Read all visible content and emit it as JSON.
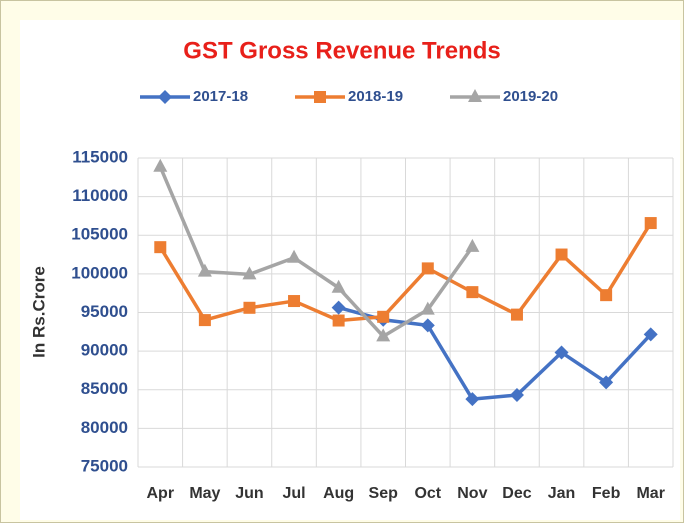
{
  "chart_data": {
    "type": "line",
    "title": "GST Gross Revenue Trends",
    "y_label": "In Rs.Crore",
    "categories": [
      "Apr",
      "May",
      "Jun",
      "Jul",
      "Aug",
      "Sep",
      "Oct",
      "Nov",
      "Dec",
      "Jan",
      "Feb",
      "Mar"
    ],
    "series": [
      {
        "name": "2017-18",
        "color": "#4472c4",
        "marker": "diamond",
        "values": [
          null,
          null,
          null,
          null,
          95633,
          94064,
          93333,
          83780,
          84314,
          89825,
          85962,
          92167
        ]
      },
      {
        "name": "2018-19",
        "color": "#ed7d31",
        "marker": "square",
        "values": [
          103458,
          94016,
          95610,
          96483,
          93960,
          94442,
          100710,
          97637,
          94726,
          102503,
          97247,
          106577
        ]
      },
      {
        "name": "2019-20",
        "color": "#a5a5a5",
        "marker": "triangle",
        "values": [
          113865,
          100289,
          99939,
          102083,
          98202,
          91916,
          95380,
          103492,
          null,
          null,
          null,
          null
        ]
      }
    ],
    "ylim": [
      75000,
      115000
    ],
    "yticks": [
      75000,
      80000,
      85000,
      90000,
      95000,
      100000,
      105000,
      110000,
      115000
    ],
    "grid": true
  }
}
